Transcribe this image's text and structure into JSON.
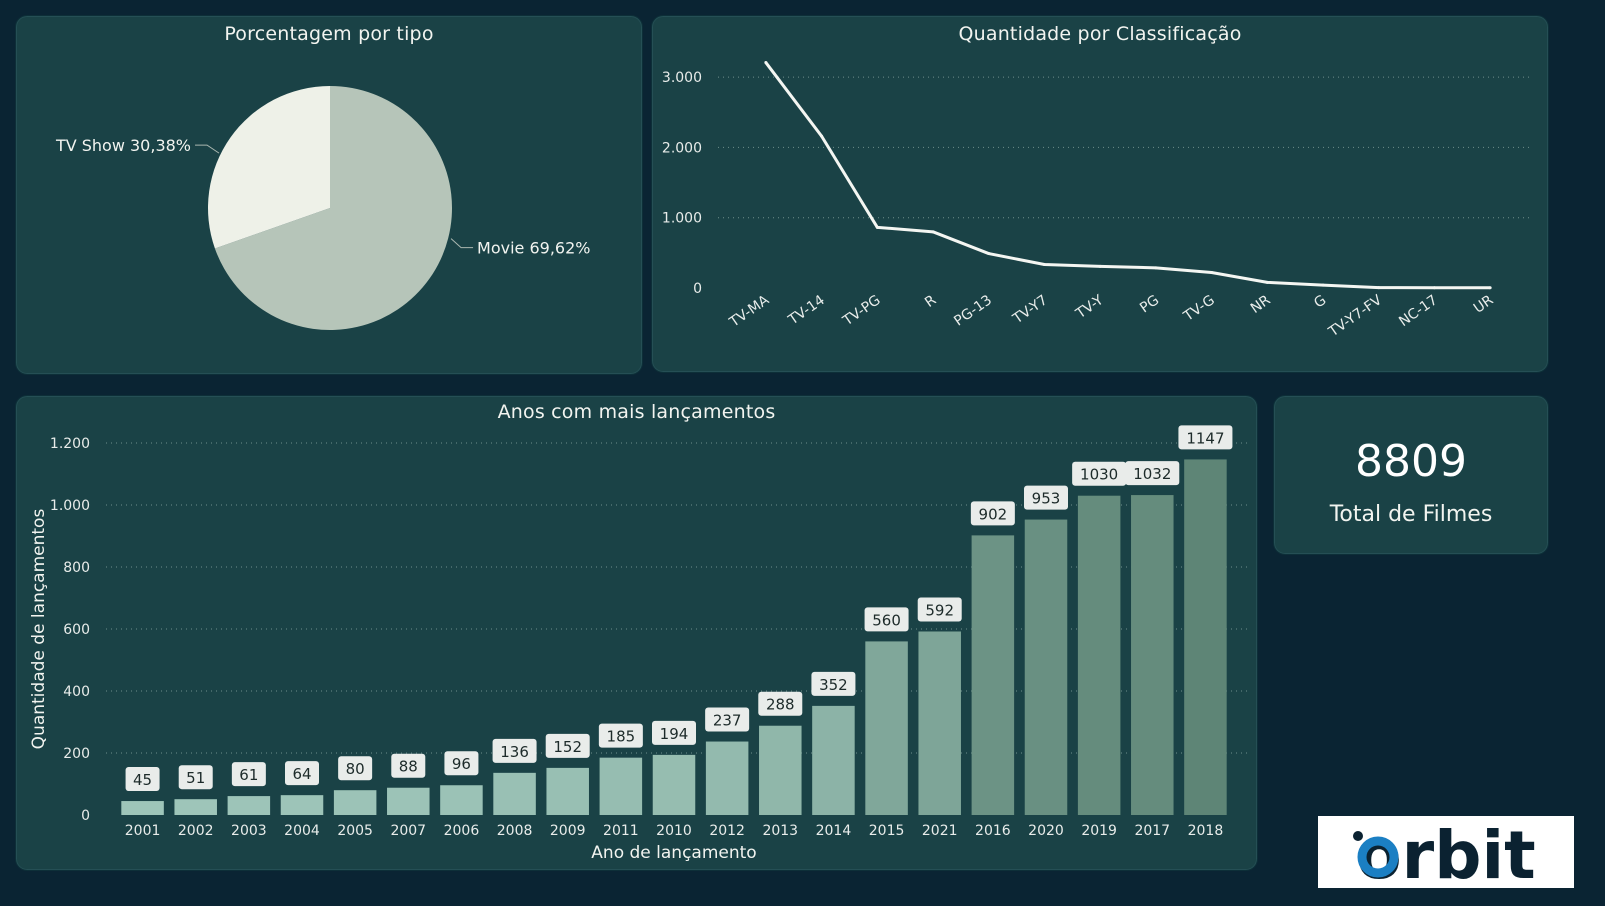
{
  "colors": {
    "background": "#0a2433",
    "panel": "#1a4246",
    "pie_tv_show": "#eef1e8",
    "pie_movie": "#b6c5b9",
    "line": "#f4f6f2",
    "bar_light": "#a1c8bc",
    "bar_dark": "#5e8576",
    "logo_blue": "#1b7fc3"
  },
  "pie_panel": {
    "title": "Porcentagem por tipo"
  },
  "line_panel": {
    "title": "Quantidade por Classificação"
  },
  "bar_panel": {
    "title": "Anos com mais lançamentos"
  },
  "kpi": {
    "value": "8809",
    "label": "Total de Filmes"
  },
  "logo": {
    "text": "orbit"
  },
  "chart_data": [
    {
      "type": "pie",
      "title": "Porcentagem por tipo",
      "slices": [
        {
          "name": "Movie",
          "value": 69.62,
          "label": "Movie 69,62%"
        },
        {
          "name": "TV Show",
          "value": 30.38,
          "label": "TV Show 30,38%"
        }
      ]
    },
    {
      "type": "line",
      "title": "Quantidade por Classificação",
      "categories": [
        "TV-MA",
        "TV-14",
        "TV-PG",
        "R",
        "PG-13",
        "TV-Y7",
        "TV-Y",
        "PG",
        "TV-G",
        "NR",
        "G",
        "TV-Y7-FV",
        "NC-17",
        "UR"
      ],
      "values": [
        3207,
        2160,
        863,
        799,
        490,
        334,
        307,
        287,
        220,
        80,
        41,
        6,
        3,
        3
      ],
      "ylim": [
        0,
        3300
      ],
      "yticks": [
        0,
        1000,
        2000,
        3000
      ],
      "ytick_labels": [
        "0",
        "1.000",
        "2.000",
        "3.000"
      ],
      "grid": true
    },
    {
      "type": "bar",
      "title": "Anos com mais lançamentos",
      "categories": [
        "2001",
        "2002",
        "2003",
        "2004",
        "2005",
        "2007",
        "2006",
        "2008",
        "2009",
        "2011",
        "2010",
        "2012",
        "2013",
        "2014",
        "2015",
        "2021",
        "2016",
        "2020",
        "2019",
        "2017",
        "2018"
      ],
      "values": [
        45,
        51,
        61,
        64,
        80,
        88,
        96,
        136,
        152,
        185,
        194,
        237,
        288,
        352,
        560,
        592,
        902,
        953,
        1030,
        1032,
        1147
      ],
      "xlabel": "Ano de lançamento",
      "ylabel": "Quantidade de lançamentos",
      "ylim": [
        0,
        1200
      ],
      "yticks": [
        0,
        200,
        400,
        600,
        800,
        1000,
        1200
      ],
      "ytick_labels": [
        "0",
        "200",
        "400",
        "600",
        "800",
        "1.000",
        "1.200"
      ],
      "grid": true
    }
  ]
}
